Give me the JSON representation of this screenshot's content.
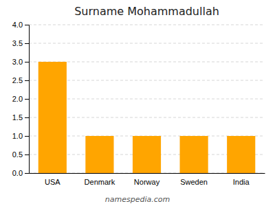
{
  "chart_data": {
    "type": "bar",
    "title": "Surname Mohammadullah",
    "categories": [
      "USA",
      "Denmark",
      "Norway",
      "Sweden",
      "India"
    ],
    "values": [
      3,
      1,
      1,
      1,
      1
    ],
    "color": "#FFA500",
    "ylim": [
      0,
      4
    ],
    "yticks": [
      {
        "value": 0,
        "label": "0.0"
      },
      0.5,
      {
        "value": 1,
        "label": "1.0"
      },
      1.5,
      {
        "value": 2,
        "label": "2.0"
      },
      2.5,
      {
        "value": 3,
        "label": "3.0"
      },
      3.5,
      {
        "value": 4,
        "label": "4.0"
      }
    ],
    "grid": true,
    "annotations": [
      "namespedia.com"
    ]
  }
}
